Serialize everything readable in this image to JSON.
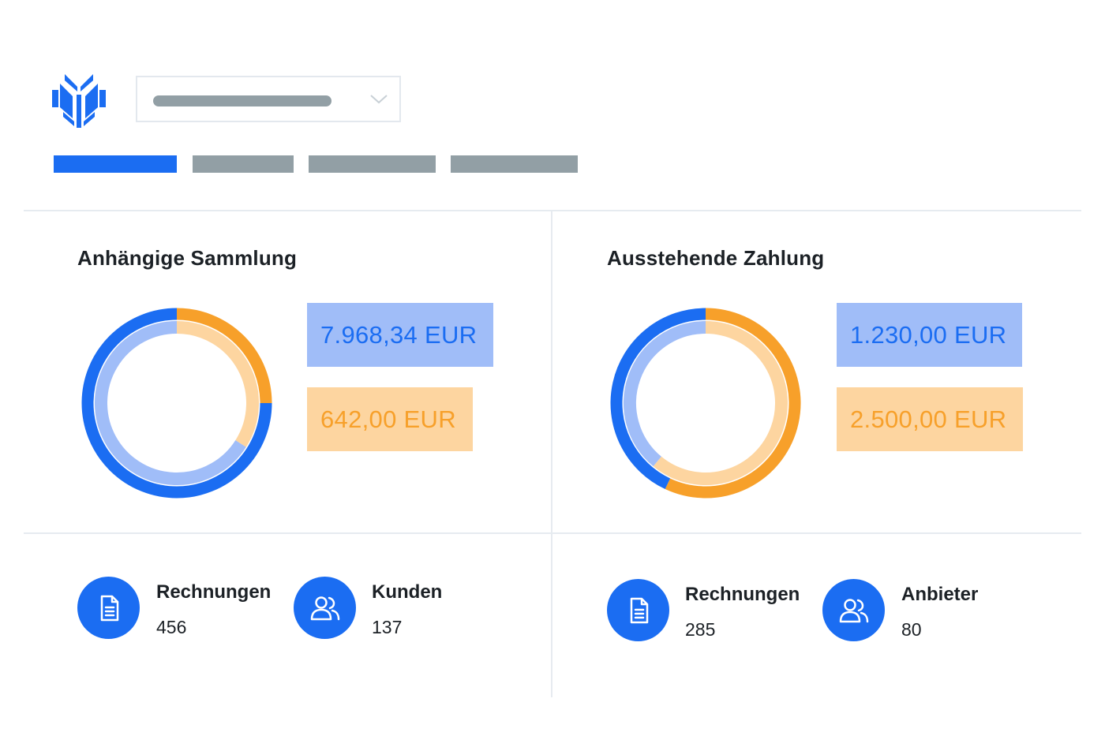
{
  "header": {
    "logo_icon": "brand-logo-icon",
    "dropdown_icon": "chevron-down-icon",
    "tabs": [
      {
        "state": "active"
      },
      {
        "state": "inactive"
      },
      {
        "state": "inactive"
      },
      {
        "state": "inactive"
      }
    ]
  },
  "colors": {
    "blue": "#1b6df2",
    "light_blue": "#a0bdf8",
    "orange": "#f7a02a",
    "light_orange": "#fdd5a0",
    "placeholder_gray": "#929fa5"
  },
  "left_panel": {
    "title": "Anhängige Sammlung",
    "amount_blue": "7.968,34 EUR",
    "amount_orange": "642,00 EUR",
    "stats": [
      {
        "icon": "document-icon",
        "label": "Rechnungen",
        "value": "456"
      },
      {
        "icon": "users-icon",
        "label": "Kunden",
        "value": "137"
      }
    ]
  },
  "right_panel": {
    "title": "Ausstehende Zahlung",
    "amount_blue": "1.230,00 EUR",
    "amount_orange": "2.500,00 EUR",
    "stats": [
      {
        "icon": "document-icon",
        "label": "Rechnungen",
        "value": "285"
      },
      {
        "icon": "users-icon",
        "label": "Anbieter",
        "value": "80"
      }
    ]
  },
  "chart_data": [
    {
      "type": "pie",
      "series": [
        {
          "ring": "outer",
          "values": [
            0.25,
            0.75
          ],
          "colors": [
            "#f7a02a",
            "#1b6df2"
          ]
        },
        {
          "ring": "inner",
          "values": [
            0.34,
            0.66
          ],
          "colors": [
            "#fdd5a0",
            "#a0bdf8"
          ]
        }
      ]
    },
    {
      "type": "pie",
      "series": [
        {
          "ring": "outer",
          "values": [
            0.57,
            0.43
          ],
          "colors": [
            "#f7a02a",
            "#1b6df2"
          ]
        },
        {
          "ring": "inner",
          "values": [
            0.61,
            0.39
          ],
          "colors": [
            "#fdd5a0",
            "#a0bdf8"
          ]
        }
      ]
    }
  ]
}
